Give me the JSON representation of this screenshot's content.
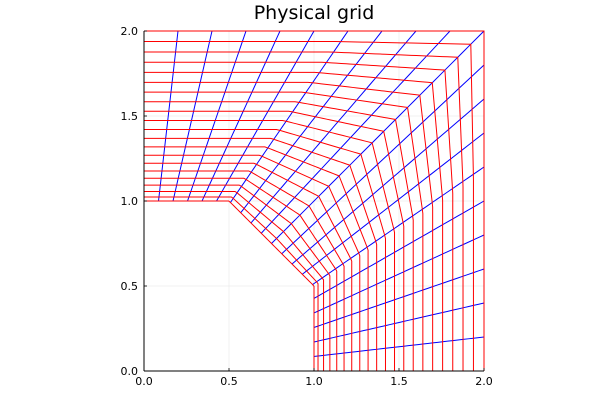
{
  "chart_data": {
    "type": "line",
    "title": "Physical grid",
    "xlabel": "",
    "ylabel": "",
    "xlim": [
      0.0,
      2.0
    ],
    "ylim": [
      0.0,
      2.0
    ],
    "x_ticks": [
      "0.0",
      "0.5",
      "1.0",
      "1.5",
      "2.0"
    ],
    "y_ticks": [
      "0.0",
      "0.5",
      "1.0",
      "1.5",
      "2.0"
    ],
    "grid": true,
    "legend": "none",
    "inner_boundary": [
      [
        0.0,
        1.0
      ],
      [
        0.5,
        1.0
      ],
      [
        1.0,
        0.5
      ],
      [
        1.0,
        0.0
      ]
    ],
    "outer_corner": [
      2.0,
      2.0
    ],
    "radial_line_count": 21,
    "layer_line_count": 21,
    "series": [
      {
        "name": "radial grid lines",
        "color": "#0000ff"
      },
      {
        "name": "layer grid lines",
        "color": "#ff0000"
      }
    ]
  }
}
